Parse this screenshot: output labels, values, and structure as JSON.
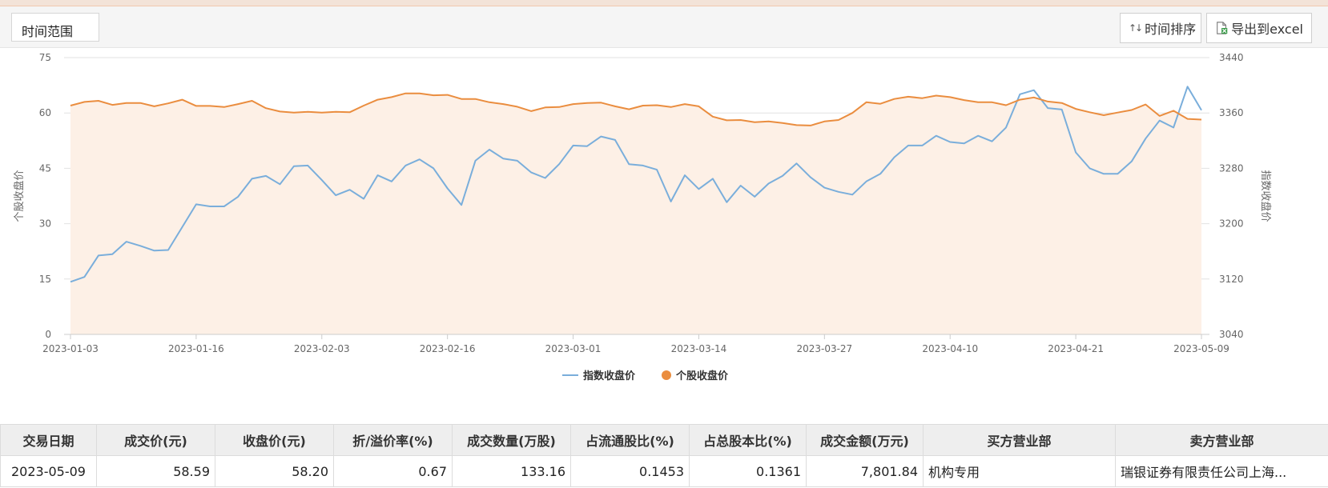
{
  "toolbar": {
    "range_label": "时间范围",
    "sort_label": "时间排序",
    "export_label": "导出到excel"
  },
  "colors": {
    "index_line": "#7aaedb",
    "stock_line": "#ea8d3f",
    "stock_area": "#fdf0e6"
  },
  "chart_data": {
    "type": "line",
    "x": [
      "2023-01-03",
      "2023-01-04",
      "2023-01-05",
      "2023-01-06",
      "2023-01-09",
      "2023-01-10",
      "2023-01-11",
      "2023-01-12",
      "2023-01-13",
      "2023-01-16",
      "2023-01-17",
      "2023-01-18",
      "2023-01-19",
      "2023-01-20",
      "2023-01-30",
      "2023-01-31",
      "2023-02-01",
      "2023-02-02",
      "2023-02-03",
      "2023-02-06",
      "2023-02-07",
      "2023-02-08",
      "2023-02-09",
      "2023-02-10",
      "2023-02-13",
      "2023-02-14",
      "2023-02-15",
      "2023-02-16",
      "2023-02-17",
      "2023-02-20",
      "2023-02-21",
      "2023-02-22",
      "2023-02-23",
      "2023-02-24",
      "2023-02-27",
      "2023-02-28",
      "2023-03-01",
      "2023-03-02",
      "2023-03-03",
      "2023-03-06",
      "2023-03-07",
      "2023-03-08",
      "2023-03-09",
      "2023-03-10",
      "2023-03-13",
      "2023-03-14",
      "2023-03-15",
      "2023-03-16",
      "2023-03-17",
      "2023-03-20",
      "2023-03-21",
      "2023-03-22",
      "2023-03-23",
      "2023-03-24",
      "2023-03-27",
      "2023-03-28",
      "2023-03-29",
      "2023-03-30",
      "2023-03-31",
      "2023-04-03",
      "2023-04-04",
      "2023-04-06",
      "2023-04-07",
      "2023-04-10",
      "2023-04-11",
      "2023-04-12",
      "2023-04-13",
      "2023-04-14",
      "2023-04-17",
      "2023-04-18",
      "2023-04-19",
      "2023-04-20",
      "2023-04-21",
      "2023-04-24",
      "2023-04-25",
      "2023-04-26",
      "2023-04-27",
      "2023-04-28",
      "2023-05-04",
      "2023-05-05",
      "2023-05-08",
      "2023-05-09"
    ],
    "x_ticks": [
      "2023-01-03",
      "2023-01-16",
      "2023-02-03",
      "2023-02-16",
      "2023-03-01",
      "2023-03-14",
      "2023-03-27",
      "2023-04-10",
      "2023-04-21",
      "2023-05-09"
    ],
    "series": [
      {
        "name": "指数收盘价",
        "axis": "right",
        "values": [
          3116,
          3123,
          3154,
          3156,
          3174,
          3168,
          3161,
          3162,
          3195,
          3228,
          3225,
          3225,
          3239,
          3265,
          3269,
          3257,
          3283,
          3284,
          3263,
          3241,
          3249,
          3236,
          3270,
          3261,
          3284,
          3293,
          3280,
          3251,
          3227,
          3291,
          3307,
          3294,
          3291,
          3274,
          3266,
          3286,
          3313,
          3312,
          3326,
          3321,
          3286,
          3284,
          3278,
          3232,
          3270,
          3250,
          3265,
          3231,
          3255,
          3239,
          3258,
          3269,
          3287,
          3267,
          3252,
          3246,
          3242,
          3261,
          3272,
          3296,
          3313,
          3313,
          3327,
          3318,
          3316,
          3327,
          3319,
          3339,
          3387,
          3393,
          3367,
          3365,
          3303,
          3280,
          3272,
          3272,
          3290,
          3323,
          3349,
          3339,
          3398,
          3364
        ]
      },
      {
        "name": "个股收盘价",
        "axis": "left",
        "values": [
          62.0,
          63.0,
          63.3,
          62.2,
          62.7,
          62.7,
          61.8,
          62.6,
          63.6,
          61.9,
          61.9,
          61.6,
          62.4,
          63.3,
          61.3,
          60.4,
          60.1,
          60.3,
          60.1,
          60.3,
          60.2,
          62.0,
          63.6,
          64.3,
          65.3,
          65.3,
          64.8,
          64.9,
          63.8,
          63.8,
          62.9,
          62.4,
          61.7,
          60.5,
          61.5,
          61.6,
          62.4,
          62.7,
          62.8,
          61.8,
          61.0,
          62.0,
          62.1,
          61.6,
          62.4,
          61.8,
          59.0,
          58.0,
          58.1,
          57.5,
          57.7,
          57.3,
          56.7,
          56.6,
          57.7,
          58.1,
          60.0,
          62.9,
          62.5,
          63.8,
          64.4,
          64.0,
          64.7,
          64.3,
          63.5,
          62.9,
          62.9,
          62.1,
          63.6,
          64.2,
          63.1,
          62.7,
          61.1,
          60.2,
          59.4,
          60.1,
          60.8,
          62.3,
          59.2,
          60.6,
          58.4,
          58.2
        ]
      }
    ],
    "ylabel_left": "个股收盘价",
    "ylabel_right": "指数收盘价",
    "ylim_left": [
      0,
      75
    ],
    "ylim_right": [
      3040,
      3440
    ],
    "yticks_left": [
      "0",
      "15",
      "30",
      "45",
      "60",
      "75"
    ],
    "yticks_right": [
      "3040",
      "3120",
      "3200",
      "3280",
      "3360",
      "3440"
    ],
    "area_under": "个股收盘价",
    "grid": "horizontal",
    "legend": "bottom-center"
  },
  "table": {
    "headers": [
      "交易日期",
      "成交价(元)",
      "收盘价(元)",
      "折/溢价率(%)",
      "成交数量(万股)",
      "占流通股比(%)",
      "占总股本比(%)",
      "成交金额(万元)",
      "买方营业部",
      "卖方营业部"
    ],
    "rows": [
      [
        "2023-05-09",
        "58.59",
        "58.20",
        "0.67",
        "133.16",
        "0.1453",
        "0.1361",
        "7,801.84",
        "机构专用",
        "瑞银证券有限责任公司上海..."
      ]
    ]
  }
}
